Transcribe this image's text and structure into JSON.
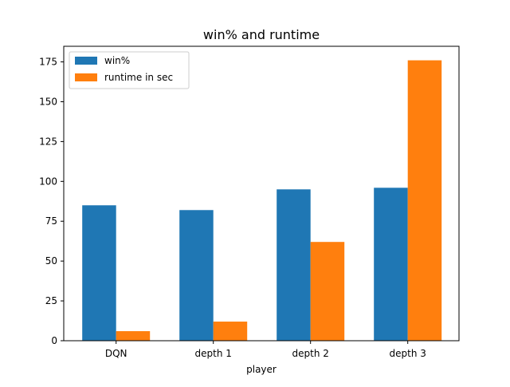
{
  "chart_data": {
    "type": "bar",
    "title": "win% and runtime",
    "xlabel": "player",
    "ylabel": "",
    "categories": [
      "DQN",
      "depth 1",
      "depth 2",
      "depth 3"
    ],
    "series": [
      {
        "name": "win%",
        "values": [
          85,
          82,
          95,
          96
        ],
        "color": "#1f77b4"
      },
      {
        "name": "runtime in sec",
        "values": [
          6,
          12,
          62,
          176
        ],
        "color": "#ff7f0e"
      }
    ],
    "ylim": [
      0,
      184.8
    ],
    "yticks": [
      0,
      25,
      50,
      75,
      100,
      125,
      150,
      175
    ],
    "grid": false,
    "legend_position": "top-left"
  }
}
